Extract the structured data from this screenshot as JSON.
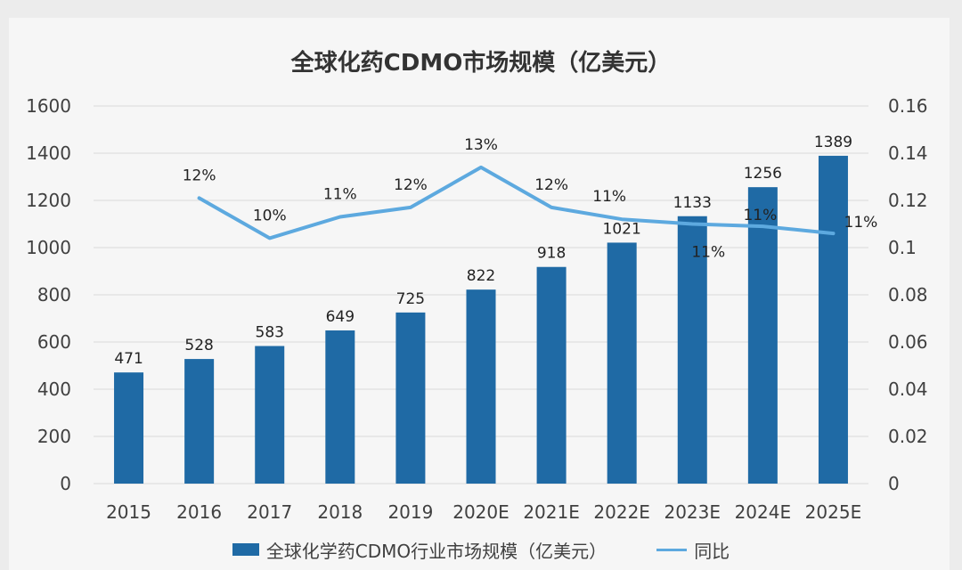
{
  "chart_data": {
    "type": "bar",
    "title": "全球化药CDMO市场规模（亿美元）",
    "categories": [
      "2015",
      "2016",
      "2017",
      "2018",
      "2019",
      "2020E",
      "2021E",
      "2022E",
      "2023E",
      "2024E",
      "2025E"
    ],
    "series": [
      {
        "name": "全球化学药CDMO行业市场规模（亿美元）",
        "type": "bar",
        "axis": "left",
        "color": "#1f6aa5",
        "values": [
          471,
          528,
          583,
          649,
          725,
          822,
          918,
          1021,
          1133,
          1256,
          1389
        ],
        "labels": [
          "471",
          "528",
          "583",
          "649",
          "725",
          "822",
          "918",
          "1021",
          "1133",
          "1256",
          "1389"
        ]
      },
      {
        "name": "同比",
        "type": "line",
        "axis": "right",
        "color": "#5da9df",
        "values": [
          null,
          0.121,
          0.104,
          0.113,
          0.117,
          0.134,
          0.117,
          0.112,
          0.11,
          0.109,
          0.106
        ],
        "labels": [
          "",
          "12%",
          "10%",
          "11%",
          "12%",
          "13%",
          "12%",
          "11%",
          "11%",
          "11%",
          "11%"
        ]
      }
    ],
    "y_left": {
      "min": 0,
      "max": 1600,
      "ticks": [
        "0",
        "200",
        "400",
        "600",
        "800",
        "1000",
        "1200",
        "1400",
        "1600"
      ]
    },
    "y_right": {
      "min": 0,
      "max": 0.16,
      "ticks": [
        "0",
        "0.02",
        "0.04",
        "0.06",
        "0.08",
        "0.1",
        "0.12",
        "0.14",
        "0.16"
      ]
    },
    "grid": true,
    "legend_position": "bottom",
    "colors": {
      "gridline": "#d9d9d9",
      "text": "#404040"
    }
  }
}
